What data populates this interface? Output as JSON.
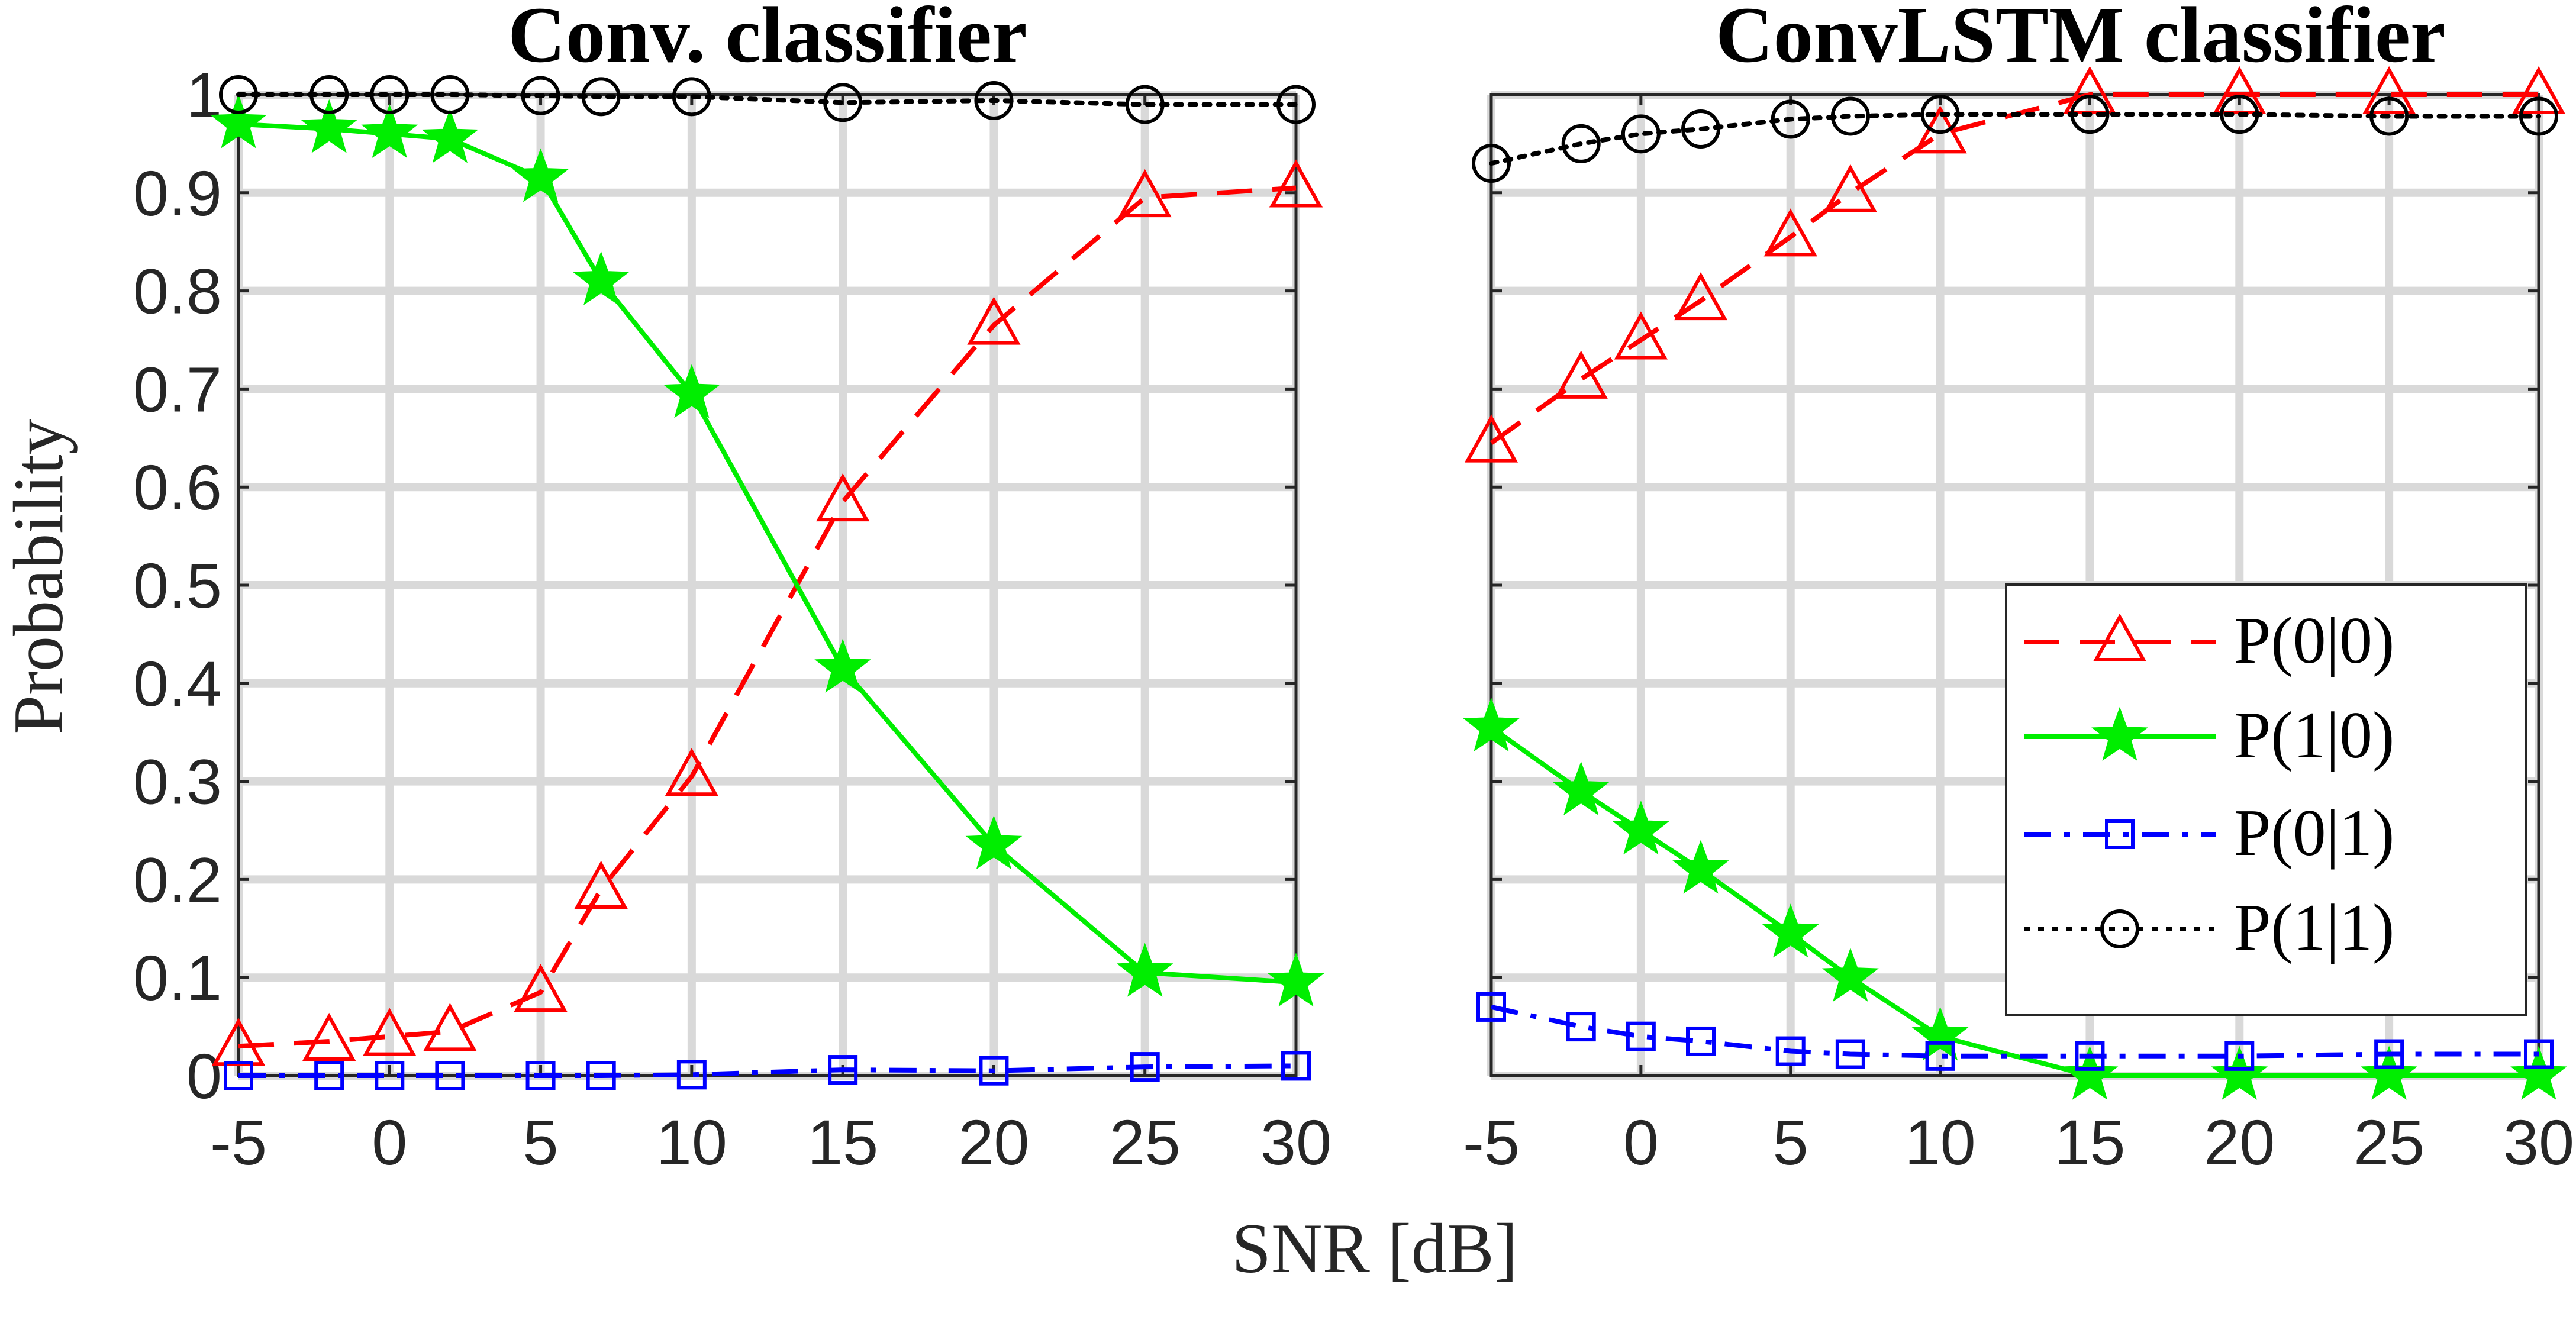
{
  "figure": {
    "xlabel": "SNR [dB]",
    "ylabel": "Probability"
  },
  "legend": {
    "placement": "right panel, center-right",
    "entries": [
      "P(0|0)",
      "P(1|0)",
      "P(0|1)",
      "P(1|1)"
    ]
  },
  "style": {
    "series_colors": [
      "#ff0000",
      "#00ee00",
      "#0000ff",
      "#000000"
    ],
    "series_markers": [
      "triangle",
      "star",
      "square",
      "circle"
    ],
    "series_dash": [
      "dashed",
      "solid",
      "dash-dot",
      "dotted"
    ],
    "grid_color": "#d9d9d9",
    "axis_color": "#262626"
  },
  "chart_data": [
    {
      "type": "line",
      "title": "Conv. classifier",
      "xlabel": "SNR [dB]",
      "ylabel": "Probability",
      "xlim": [
        -5,
        30
      ],
      "ylim": [
        0,
        1
      ],
      "xticks": [
        -5,
        0,
        5,
        10,
        15,
        20,
        25,
        30
      ],
      "yticks": [
        0,
        0.1,
        0.2,
        0.3,
        0.4,
        0.5,
        0.6,
        0.7,
        0.8,
        0.9,
        1
      ],
      "ytick_labels": [
        "0",
        "0.1",
        "0.2",
        "0.3",
        "0.4",
        "0.5",
        "0.6",
        "0.7",
        "0.8",
        "0.9",
        "1"
      ],
      "grid": true,
      "x": [
        -5,
        -2,
        0,
        2,
        5,
        7,
        10,
        15,
        20,
        25,
        30
      ],
      "series": [
        {
          "name": "P(0|0)",
          "values": [
            0.03,
            0.035,
            0.04,
            0.045,
            0.085,
            0.19,
            0.305,
            0.585,
            0.765,
            0.895,
            0.905
          ]
        },
        {
          "name": "P(1|0)",
          "values": [
            0.97,
            0.965,
            0.96,
            0.955,
            0.915,
            0.81,
            0.695,
            0.415,
            0.235,
            0.105,
            0.095
          ]
        },
        {
          "name": "P(0|1)",
          "values": [
            0.0,
            0.0,
            0.0,
            0.0,
            0.0,
            0.0,
            0.001,
            0.006,
            0.005,
            0.009,
            0.01
          ]
        },
        {
          "name": "P(1|1)",
          "values": [
            1.0,
            1.0,
            1.0,
            1.0,
            0.999,
            0.998,
            0.998,
            0.992,
            0.994,
            0.99,
            0.99
          ]
        }
      ]
    },
    {
      "type": "line",
      "title": "ConvLSTM classifier",
      "xlabel": "SNR [dB]",
      "ylabel": "Probability",
      "xlim": [
        -5,
        30
      ],
      "ylim": [
        0,
        1
      ],
      "xticks": [
        -5,
        0,
        5,
        10,
        15,
        20,
        25,
        30
      ],
      "yticks": [
        0,
        0.1,
        0.2,
        0.3,
        0.4,
        0.5,
        0.6,
        0.7,
        0.8,
        0.9,
        1
      ],
      "ytick_labels": [],
      "grid": true,
      "x": [
        -5,
        -2,
        0,
        2,
        5,
        7,
        10,
        15,
        20,
        25,
        30
      ],
      "series": [
        {
          "name": "P(0|0)",
          "values": [
            0.645,
            0.71,
            0.75,
            0.79,
            0.855,
            0.9,
            0.96,
            1.0,
            1.0,
            1.0,
            1.0
          ]
        },
        {
          "name": "P(1|0)",
          "values": [
            0.355,
            0.29,
            0.25,
            0.21,
            0.145,
            0.1,
            0.04,
            0.0,
            0.0,
            0.0,
            0.0
          ]
        },
        {
          "name": "P(0|1)",
          "values": [
            0.07,
            0.05,
            0.04,
            0.035,
            0.025,
            0.022,
            0.02,
            0.02,
            0.02,
            0.022,
            0.022
          ]
        },
        {
          "name": "P(1|1)",
          "values": [
            0.93,
            0.95,
            0.96,
            0.965,
            0.975,
            0.978,
            0.98,
            0.98,
            0.98,
            0.978,
            0.978
          ]
        }
      ]
    }
  ]
}
